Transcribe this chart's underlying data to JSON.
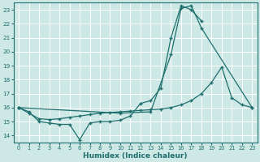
{
  "xlabel": "Humidex (Indice chaleur)",
  "xlim": [
    -0.5,
    23.5
  ],
  "ylim": [
    13.5,
    23.5
  ],
  "yticks": [
    14,
    15,
    16,
    17,
    18,
    19,
    20,
    21,
    22,
    23
  ],
  "xticks": [
    0,
    1,
    2,
    3,
    4,
    5,
    6,
    7,
    8,
    9,
    10,
    11,
    12,
    13,
    14,
    15,
    16,
    17,
    18,
    19,
    20,
    21,
    22,
    23
  ],
  "bg_color": "#cde8e5",
  "line_color": "#1e6e6e",
  "grid_color": "#ffffff",
  "line1_x": [
    0,
    1,
    2,
    3,
    4,
    5,
    6,
    7,
    8,
    9,
    10,
    11,
    12,
    13,
    14,
    15,
    16,
    17,
    18
  ],
  "line1_y": [
    16.0,
    15.7,
    15.0,
    14.9,
    14.8,
    14.8,
    13.7,
    14.9,
    15.0,
    15.0,
    15.1,
    15.4,
    16.3,
    16.5,
    17.4,
    21.0,
    23.3,
    23.0,
    22.2
  ],
  "line2_x": [
    0,
    10,
    13,
    15,
    16,
    17,
    18,
    23
  ],
  "line2_y": [
    16.0,
    15.6,
    15.7,
    19.8,
    23.1,
    23.3,
    21.7,
    16.0
  ],
  "line3_x": [
    0,
    1,
    2,
    3,
    4,
    5,
    6,
    7,
    8,
    9,
    10,
    11,
    12,
    13,
    14,
    15,
    16,
    17,
    18,
    19,
    20,
    21,
    22,
    23
  ],
  "line3_y": [
    16.0,
    15.6,
    15.2,
    15.15,
    15.2,
    15.3,
    15.4,
    15.5,
    15.6,
    15.65,
    15.7,
    15.75,
    15.8,
    15.85,
    15.9,
    16.0,
    16.2,
    16.5,
    17.0,
    17.8,
    18.9,
    16.7,
    16.2,
    16.0
  ]
}
